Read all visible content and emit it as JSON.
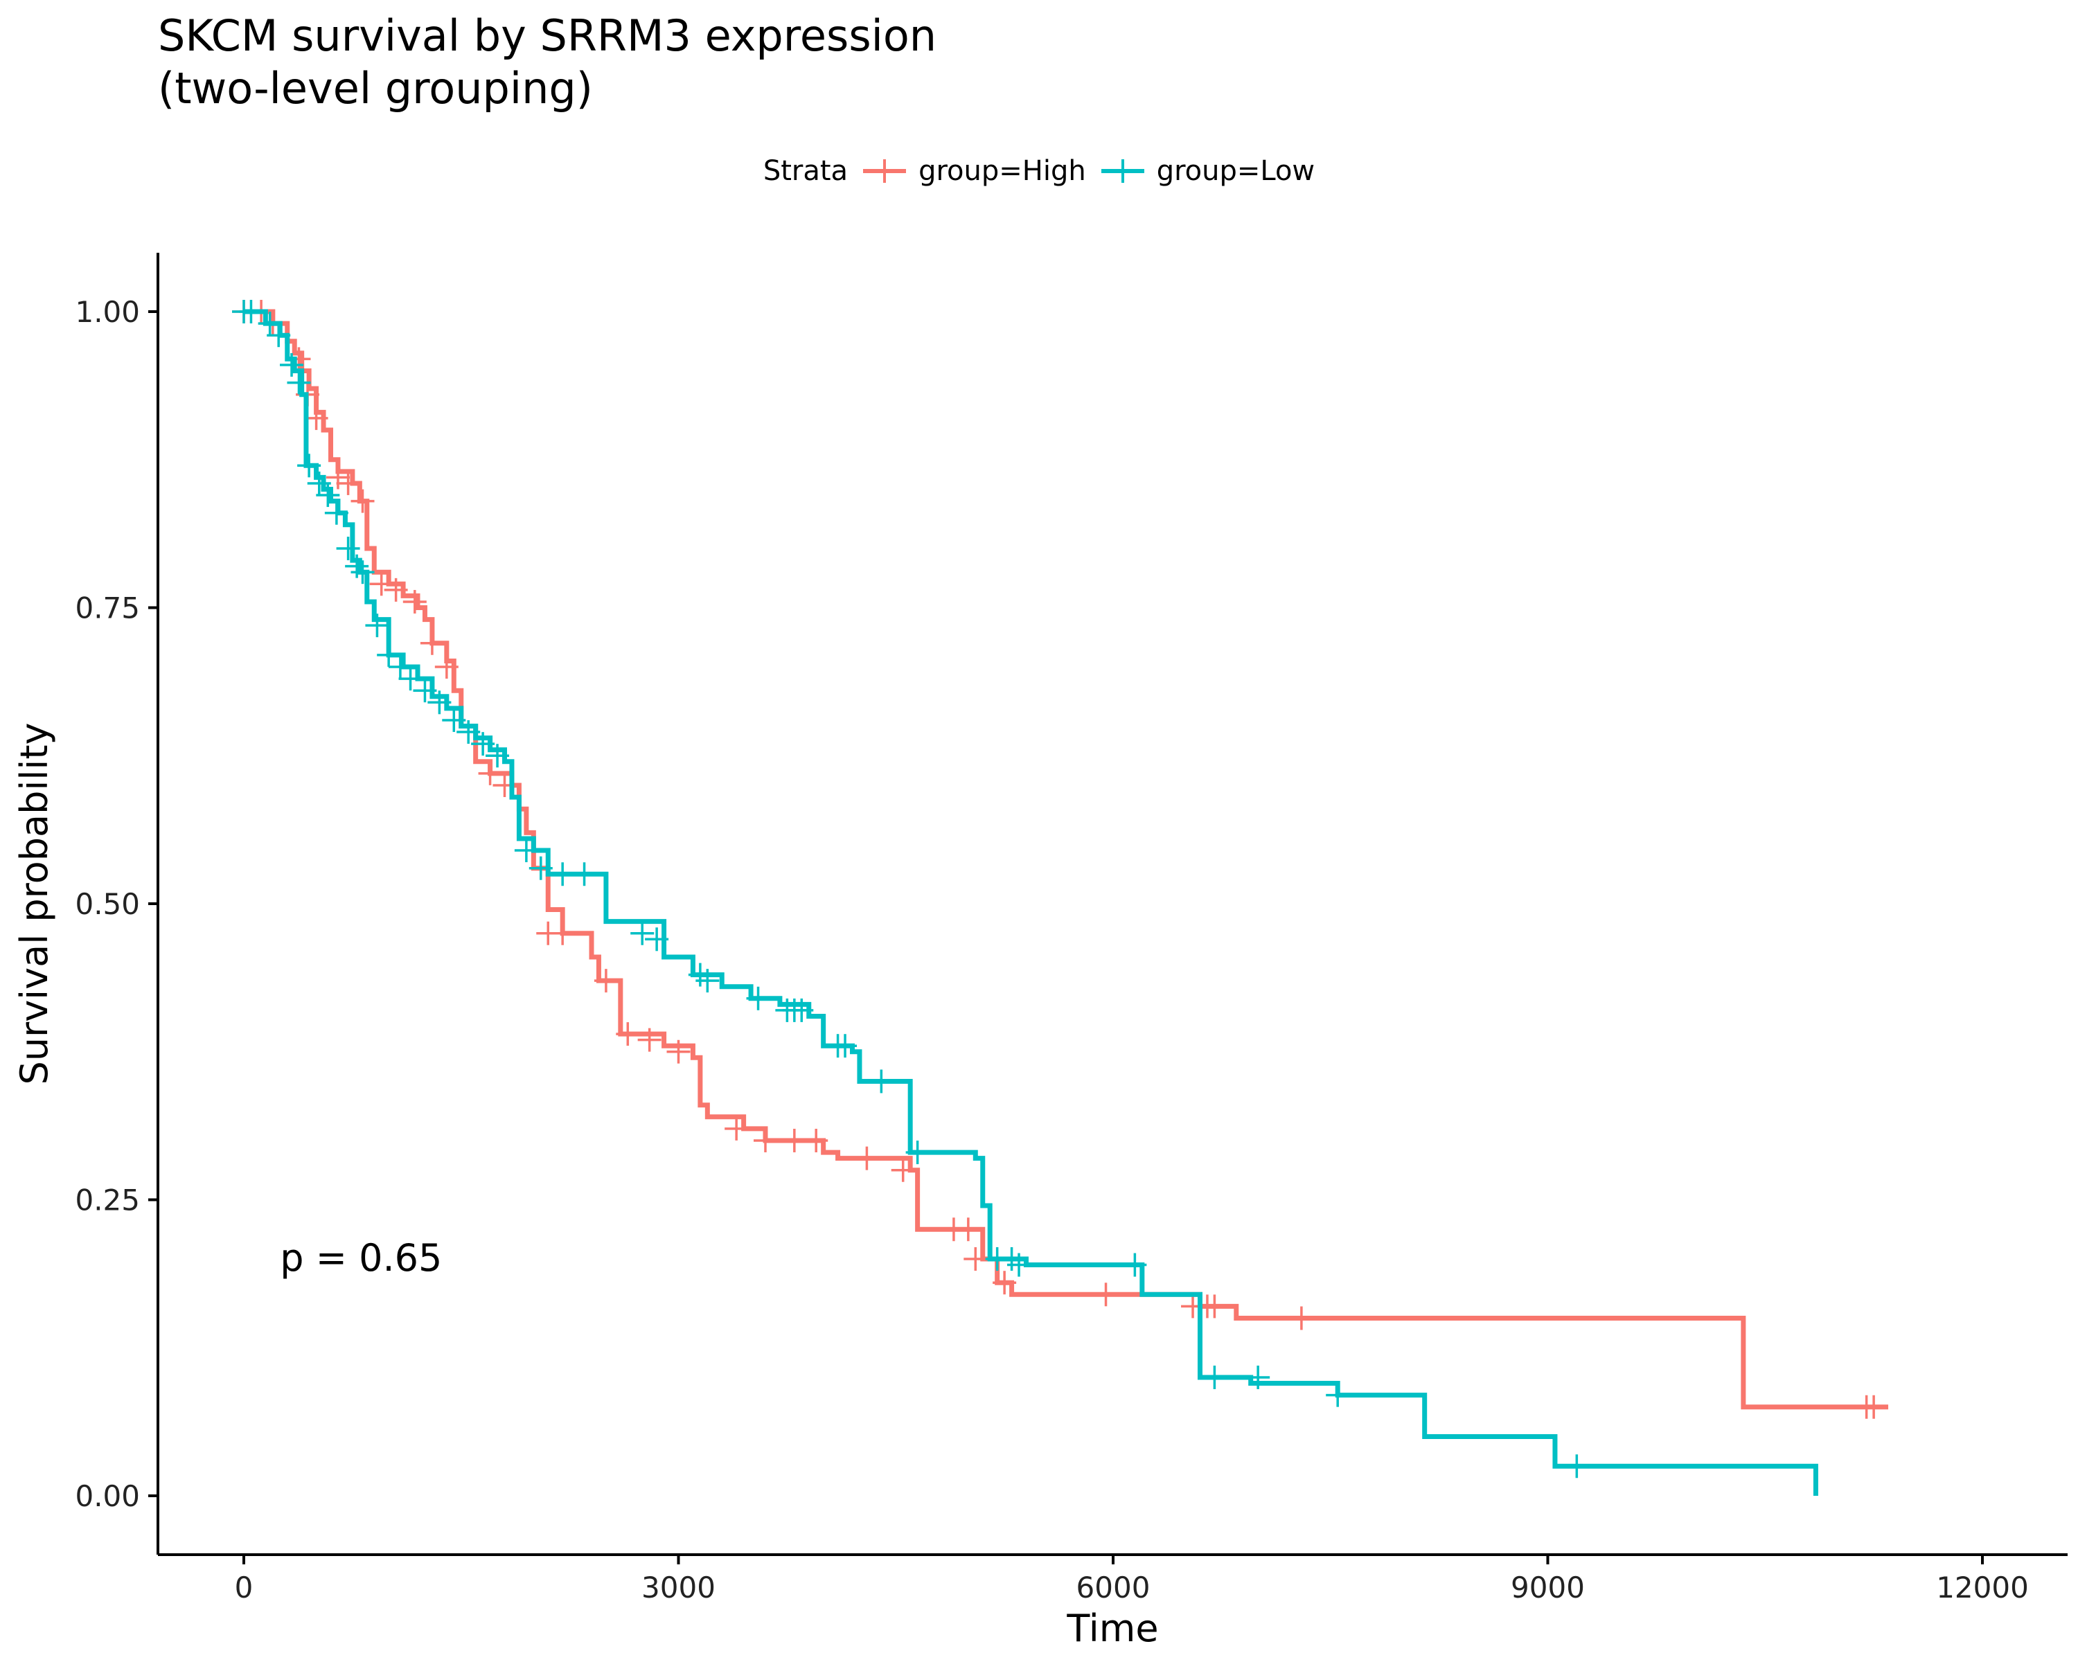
{
  "chart_data": {
    "type": "line",
    "title_line1": "SKCM survival by SRRM3 expression",
    "title_line2": "(two-level grouping)",
    "xlabel": "Time",
    "ylabel": "Survival probability",
    "xlim": [
      -500,
      12500
    ],
    "ylim": [
      -0.1,
      1.05
    ],
    "x_ticks": [
      0,
      3000,
      6000,
      9000,
      12000
    ],
    "y_ticks": [
      0.0,
      0.25,
      0.5,
      0.75,
      1.0
    ],
    "y_tick_labels": [
      "0.00",
      "0.25",
      "0.50",
      "0.75",
      "1.00"
    ],
    "grid": false,
    "legend_position": "top",
    "legend_title": "Strata",
    "annotation": "p = 0.65",
    "annotation_x": 250,
    "annotation_y": 0.2,
    "series": [
      {
        "name": "group=High",
        "color": "#F8766D",
        "steps": [
          [
            0,
            1.0
          ],
          [
            200,
            0.99
          ],
          [
            300,
            0.975
          ],
          [
            350,
            0.965
          ],
          [
            400,
            0.95
          ],
          [
            450,
            0.935
          ],
          [
            500,
            0.915
          ],
          [
            550,
            0.9
          ],
          [
            600,
            0.875
          ],
          [
            650,
            0.865
          ],
          [
            750,
            0.855
          ],
          [
            800,
            0.84
          ],
          [
            850,
            0.8
          ],
          [
            900,
            0.78
          ],
          [
            1000,
            0.77
          ],
          [
            1100,
            0.76
          ],
          [
            1200,
            0.75
          ],
          [
            1250,
            0.74
          ],
          [
            1300,
            0.72
          ],
          [
            1400,
            0.705
          ],
          [
            1450,
            0.68
          ],
          [
            1500,
            0.65
          ],
          [
            1600,
            0.62
          ],
          [
            1700,
            0.61
          ],
          [
            1850,
            0.6
          ],
          [
            1900,
            0.58
          ],
          [
            1950,
            0.56
          ],
          [
            2000,
            0.53
          ],
          [
            2100,
            0.495
          ],
          [
            2200,
            0.475
          ],
          [
            2400,
            0.455
          ],
          [
            2450,
            0.435
          ],
          [
            2600,
            0.39
          ],
          [
            2900,
            0.38
          ],
          [
            3100,
            0.37
          ],
          [
            3150,
            0.33
          ],
          [
            3200,
            0.32
          ],
          [
            3450,
            0.31
          ],
          [
            3600,
            0.3
          ],
          [
            4000,
            0.29
          ],
          [
            4100,
            0.285
          ],
          [
            4600,
            0.275
          ],
          [
            4650,
            0.225
          ],
          [
            5100,
            0.2
          ],
          [
            5200,
            0.18
          ],
          [
            5300,
            0.17
          ],
          [
            6600,
            0.16
          ],
          [
            6850,
            0.15
          ],
          [
            10350,
            0.15
          ],
          [
            10350,
            0.075
          ],
          [
            11350,
            0.075
          ]
        ],
        "censors": [
          [
            0,
            1.0
          ],
          [
            120,
            1.0
          ],
          [
            200,
            0.99
          ],
          [
            380,
            0.96
          ],
          [
            440,
            0.93
          ],
          [
            500,
            0.91
          ],
          [
            650,
            0.86
          ],
          [
            720,
            0.855
          ],
          [
            820,
            0.84
          ],
          [
            950,
            0.77
          ],
          [
            1050,
            0.765
          ],
          [
            1180,
            0.755
          ],
          [
            1300,
            0.72
          ],
          [
            1400,
            0.7
          ],
          [
            1700,
            0.61
          ],
          [
            1800,
            0.6
          ],
          [
            2100,
            0.475
          ],
          [
            2200,
            0.475
          ],
          [
            2500,
            0.435
          ],
          [
            2650,
            0.39
          ],
          [
            2800,
            0.385
          ],
          [
            3000,
            0.375
          ],
          [
            3400,
            0.31
          ],
          [
            3600,
            0.3
          ],
          [
            3800,
            0.3
          ],
          [
            3950,
            0.3
          ],
          [
            4300,
            0.285
          ],
          [
            4550,
            0.275
          ],
          [
            4900,
            0.225
          ],
          [
            5000,
            0.225
          ],
          [
            5050,
            0.2
          ],
          [
            5250,
            0.18
          ],
          [
            5950,
            0.17
          ],
          [
            6550,
            0.16
          ],
          [
            6650,
            0.16
          ],
          [
            6700,
            0.16
          ],
          [
            7300,
            0.15
          ],
          [
            11200,
            0.075
          ],
          [
            11250,
            0.075
          ]
        ]
      },
      {
        "name": "group=Low",
        "color": "#00BFC4",
        "steps": [
          [
            0,
            1.0
          ],
          [
            150,
            0.99
          ],
          [
            250,
            0.98
          ],
          [
            300,
            0.96
          ],
          [
            350,
            0.95
          ],
          [
            400,
            0.93
          ],
          [
            430,
            0.87
          ],
          [
            500,
            0.86
          ],
          [
            550,
            0.85
          ],
          [
            600,
            0.84
          ],
          [
            650,
            0.83
          ],
          [
            700,
            0.82
          ],
          [
            750,
            0.79
          ],
          [
            800,
            0.78
          ],
          [
            850,
            0.755
          ],
          [
            900,
            0.74
          ],
          [
            1000,
            0.71
          ],
          [
            1100,
            0.7
          ],
          [
            1200,
            0.69
          ],
          [
            1300,
            0.675
          ],
          [
            1400,
            0.665
          ],
          [
            1500,
            0.65
          ],
          [
            1600,
            0.64
          ],
          [
            1700,
            0.63
          ],
          [
            1800,
            0.62
          ],
          [
            1850,
            0.59
          ],
          [
            1900,
            0.555
          ],
          [
            2000,
            0.545
          ],
          [
            2100,
            0.525
          ],
          [
            2500,
            0.51
          ],
          [
            2500,
            0.485
          ],
          [
            2900,
            0.47
          ],
          [
            2900,
            0.455
          ],
          [
            3100,
            0.44
          ],
          [
            3300,
            0.43
          ],
          [
            3500,
            0.42
          ],
          [
            3700,
            0.415
          ],
          [
            3900,
            0.405
          ],
          [
            4000,
            0.38
          ],
          [
            4200,
            0.375
          ],
          [
            4250,
            0.35
          ],
          [
            4600,
            0.345
          ],
          [
            4600,
            0.29
          ],
          [
            5050,
            0.285
          ],
          [
            5100,
            0.245
          ],
          [
            5150,
            0.2
          ],
          [
            5400,
            0.195
          ],
          [
            6200,
            0.17
          ],
          [
            6600,
            0.1
          ],
          [
            6950,
            0.095
          ],
          [
            7550,
            0.085
          ],
          [
            8150,
            0.085
          ],
          [
            8150,
            0.05
          ],
          [
            9050,
            0.05
          ],
          [
            9050,
            0.025
          ],
          [
            10850,
            0.025
          ],
          [
            10850,
            0.0
          ]
        ],
        "censors": [
          [
            0,
            1.0
          ],
          [
            50,
            1.0
          ],
          [
            180,
            0.99
          ],
          [
            240,
            0.98
          ],
          [
            330,
            0.955
          ],
          [
            380,
            0.94
          ],
          [
            450,
            0.87
          ],
          [
            520,
            0.855
          ],
          [
            580,
            0.845
          ],
          [
            640,
            0.83
          ],
          [
            720,
            0.8
          ],
          [
            780,
            0.785
          ],
          [
            820,
            0.78
          ],
          [
            920,
            0.735
          ],
          [
            1000,
            0.71
          ],
          [
            1080,
            0.7
          ],
          [
            1150,
            0.69
          ],
          [
            1250,
            0.68
          ],
          [
            1350,
            0.67
          ],
          [
            1450,
            0.655
          ],
          [
            1550,
            0.645
          ],
          [
            1650,
            0.635
          ],
          [
            1750,
            0.625
          ],
          [
            1950,
            0.545
          ],
          [
            2050,
            0.53
          ],
          [
            2200,
            0.525
          ],
          [
            2350,
            0.525
          ],
          [
            2750,
            0.475
          ],
          [
            2850,
            0.47
          ],
          [
            3150,
            0.44
          ],
          [
            3200,
            0.435
          ],
          [
            3550,
            0.42
          ],
          [
            3750,
            0.41
          ],
          [
            3800,
            0.41
          ],
          [
            3850,
            0.41
          ],
          [
            4100,
            0.38
          ],
          [
            4150,
            0.38
          ],
          [
            4400,
            0.35
          ],
          [
            4650,
            0.29
          ],
          [
            5200,
            0.2
          ],
          [
            5300,
            0.2
          ],
          [
            5350,
            0.195
          ],
          [
            6150,
            0.195
          ],
          [
            6700,
            0.1
          ],
          [
            7000,
            0.1
          ],
          [
            7550,
            0.085
          ],
          [
            9200,
            0.025
          ]
        ]
      }
    ]
  }
}
